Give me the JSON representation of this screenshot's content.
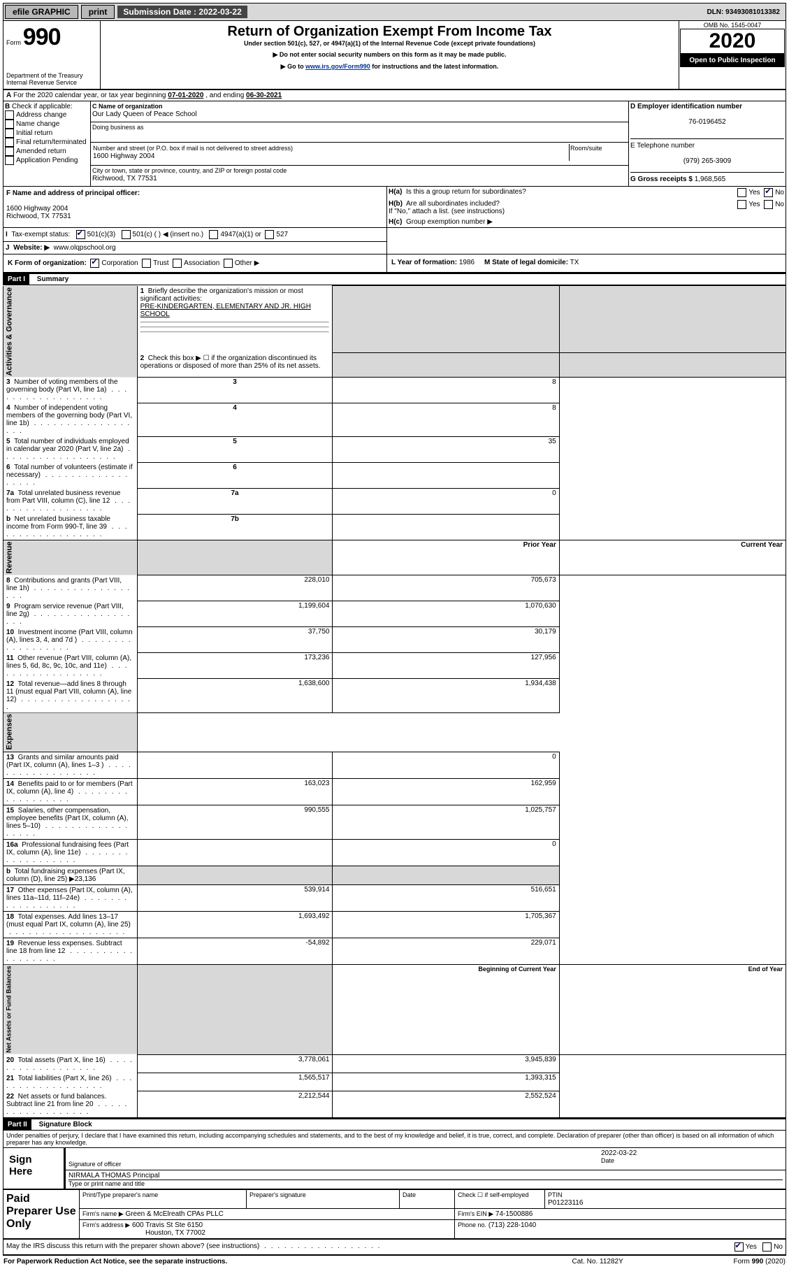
{
  "topbar": {
    "efile": "efile GRAPHIC",
    "print": "print",
    "sub_label": "Submission Date :",
    "sub_date": "2022-03-22",
    "dln": "DLN: 93493081013382"
  },
  "header": {
    "form_label": "Form",
    "form_no": "990",
    "dept": "Department of the Treasury\nInternal Revenue Service",
    "title": "Return of Organization Exempt From Income Tax",
    "under": "Under section 501(c), 527, or 4947(a)(1) of the Internal Revenue Code (except private foundations)",
    "ssn": "▶ Do not enter social security numbers on this form as it may be made public.",
    "goto_pre": "▶ Go to ",
    "goto_link": "www.irs.gov/Form990",
    "goto_post": " for instructions and the latest information.",
    "omb": "OMB No. 1545-0047",
    "year": "2020",
    "openpub": "Open to Public Inspection"
  },
  "A": {
    "text": "For the 2020 calendar year, or tax year beginning ",
    "begin": "07-01-2020",
    "mid": " , and ending ",
    "end": "06-30-2021"
  },
  "B": {
    "label": "Check if applicable:",
    "items": [
      "Address change",
      "Name change",
      "Initial return",
      "Final return/terminated",
      "Amended return",
      "Application Pending"
    ],
    "b_pref": "B"
  },
  "C": {
    "name_lbl": "C Name of organization",
    "name": "Our Lady Queen of Peace School",
    "dba_lbl": "Doing business as",
    "addr_lbl": "Number and street (or P.O. box if mail is not delivered to street address)",
    "room_lbl": "Room/suite",
    "addr": "1600 Highway 2004",
    "city_lbl": "City or town, state or province, country, and ZIP or foreign postal code",
    "city": "Richwood, TX  77531"
  },
  "D": {
    "lbl": "D Employer identification number",
    "val": "76-0196452"
  },
  "E": {
    "lbl": "E Telephone number",
    "val": "(979) 265-3909"
  },
  "G": {
    "lbl": "G Gross receipts $",
    "val": "1,968,565"
  },
  "F": {
    "lbl": "F  Name and address of principal officer:",
    "addr1": "1600 Highway 2004",
    "addr2": "Richwood, TX  77531"
  },
  "H": {
    "a": "Is this a group return for subordinates?",
    "b": "Are all subordinates included?",
    "b_note": "If \"No,\" attach a list. (see instructions)",
    "c": "Group exemption number ▶",
    "yes": "Yes",
    "no": "No",
    "ha": "H(a)",
    "hb": "H(b)",
    "hc": "H(c)"
  },
  "I": {
    "lbl": "Tax-exempt status:",
    "c3": "501(c)(3)",
    "c": "501(c) (   ) ◀ (insert no.)",
    "a1": "4947(a)(1) or",
    "s527": "527"
  },
  "J": {
    "lbl": "Website: ▶",
    "val": "www.olqpschool.org"
  },
  "K": {
    "lbl": "K Form of organization:",
    "corp": "Corporation",
    "trust": "Trust",
    "assoc": "Association",
    "other": "Other ▶"
  },
  "L": {
    "lbl": "L Year of formation:",
    "val": "1986"
  },
  "M": {
    "lbl": "M State of legal domicile:",
    "val": "TX"
  },
  "part1": {
    "tag": "Part I",
    "title": "Summary"
  },
  "s1": {
    "l1": "Briefly describe the organization's mission or most significant activities:",
    "mission": "PRE-KINDERGARTEN, ELEMENTARY AND JR. HIGH SCHOOL",
    "l2": "Check this box ▶ ☐  if the organization discontinued its operations or disposed of more than 25% of its net assets.",
    "rows": [
      {
        "n": "1",
        "t": "Briefly describe..."
      },
      {
        "n": "3",
        "t": "Number of voting members of the governing body (Part VI, line 1a)",
        "c": "3",
        "v": "8"
      },
      {
        "n": "4",
        "t": "Number of independent voting members of the governing body (Part VI, line 1b)",
        "c": "4",
        "v": "8"
      },
      {
        "n": "5",
        "t": "Total number of individuals employed in calendar year 2020 (Part V, line 2a)",
        "c": "5",
        "v": "35"
      },
      {
        "n": "6",
        "t": "Total number of volunteers (estimate if necessary)",
        "c": "6",
        "v": ""
      },
      {
        "n": "7a",
        "t": "Total unrelated business revenue from Part VIII, column (C), line 12",
        "c": "7a",
        "v": "0"
      },
      {
        "n": "b",
        "t": "Net unrelated business taxable income from Form 990-T, line 39",
        "c": "7b",
        "v": ""
      }
    ],
    "vlab": "Activities & Governance"
  },
  "rev": {
    "vlab": "Revenue",
    "hdr_prior": "Prior Year",
    "hdr_curr": "Current Year",
    "rows": [
      {
        "n": "8",
        "t": "Contributions and grants (Part VIII, line 1h)",
        "p": "228,010",
        "c": "705,673"
      },
      {
        "n": "9",
        "t": "Program service revenue (Part VIII, line 2g)",
        "p": "1,199,604",
        "c": "1,070,630"
      },
      {
        "n": "10",
        "t": "Investment income (Part VIII, column (A), lines 3, 4, and 7d )",
        "p": "37,750",
        "c": "30,179"
      },
      {
        "n": "11",
        "t": "Other revenue (Part VIII, column (A), lines 5, 6d, 8c, 9c, 10c, and 11e)",
        "p": "173,236",
        "c": "127,956"
      },
      {
        "n": "12",
        "t": "Total revenue—add lines 8 through 11 (must equal Part VIII, column (A), line 12)",
        "p": "1,638,600",
        "c": "1,934,438"
      }
    ]
  },
  "exp": {
    "vlab": "Expenses",
    "rows": [
      {
        "n": "13",
        "t": "Grants and similar amounts paid (Part IX, column (A), lines 1–3 )",
        "p": "",
        "c": "0"
      },
      {
        "n": "14",
        "t": "Benefits paid to or for members (Part IX, column (A), line 4)",
        "p": "163,023",
        "c": "162,959"
      },
      {
        "n": "15",
        "t": "Salaries, other compensation, employee benefits (Part IX, column (A), lines 5–10)",
        "p": "990,555",
        "c": "1,025,757"
      },
      {
        "n": "16a",
        "t": "Professional fundraising fees (Part IX, column (A), line 11e)",
        "p": "",
        "c": "0"
      },
      {
        "n": "b",
        "t": "Total fundraising expenses (Part IX, column (D), line 25) ▶23,136",
        "p": "SHADE",
        "c": "SHADE"
      },
      {
        "n": "17",
        "t": "Other expenses (Part IX, column (A), lines 11a–11d, 11f–24e)",
        "p": "539,914",
        "c": "516,651"
      },
      {
        "n": "18",
        "t": "Total expenses. Add lines 13–17 (must equal Part IX, column (A), line 25)",
        "p": "1,693,492",
        "c": "1,705,367"
      },
      {
        "n": "19",
        "t": "Revenue less expenses. Subtract line 18 from line 12",
        "p": "-54,892",
        "c": "229,071"
      }
    ]
  },
  "net": {
    "vlab": "Net Assets or Fund Balances",
    "hdr_b": "Beginning of Current Year",
    "hdr_e": "End of Year",
    "rows": [
      {
        "n": "20",
        "t": "Total assets (Part X, line 16)",
        "p": "3,778,061",
        "c": "3,945,839"
      },
      {
        "n": "21",
        "t": "Total liabilities (Part X, line 26)",
        "p": "1,565,517",
        "c": "1,393,315"
      },
      {
        "n": "22",
        "t": "Net assets or fund balances. Subtract line 21 from line 20",
        "p": "2,212,544",
        "c": "2,552,524"
      }
    ]
  },
  "part2": {
    "tag": "Part II",
    "title": "Signature Block"
  },
  "sig": {
    "penalties": "Under penalties of perjury, I declare that I have examined this return, including accompanying schedules and statements, and to the best of my knowledge and belief, it is true, correct, and complete. Declaration of preparer (other than officer) is based on all information of which preparer has any knowledge.",
    "here": "Sign Here",
    "sig_off": "Signature of officer",
    "date_lbl": "Date",
    "date": "2022-03-22",
    "name": "NIRMALA THOMAS Principal",
    "name_lbl": "Type or print name and title",
    "paid": "Paid Preparer Use Only",
    "p_name_lbl": "Print/Type preparer's name",
    "p_sig_lbl": "Preparer's signature",
    "p_date_lbl": "Date",
    "check_lbl": "Check ☐ if self-employed",
    "ptin_lbl": "PTIN",
    "ptin": "P01223116",
    "firm_name_lbl": "Firm's name   ▶",
    "firm_name": "Green & McElreath CPAs PLLC",
    "firm_ein_lbl": "Firm's EIN ▶",
    "firm_ein": "74-1500886",
    "firm_addr_lbl": "Firm's address ▶",
    "firm_addr": "600 Travis St Ste 6150",
    "firm_city": "Houston, TX  77002",
    "phone_lbl": "Phone no.",
    "phone": "(713) 228-1040",
    "discuss": "May the IRS discuss this return with the preparer shown above? (see instructions)",
    "yes": "Yes",
    "no": "No"
  },
  "footer": {
    "pra": "For Paperwork Reduction Act Notice, see the separate instructions.",
    "cat": "Cat. No. 11282Y",
    "form": "Form 990 (2020)"
  }
}
